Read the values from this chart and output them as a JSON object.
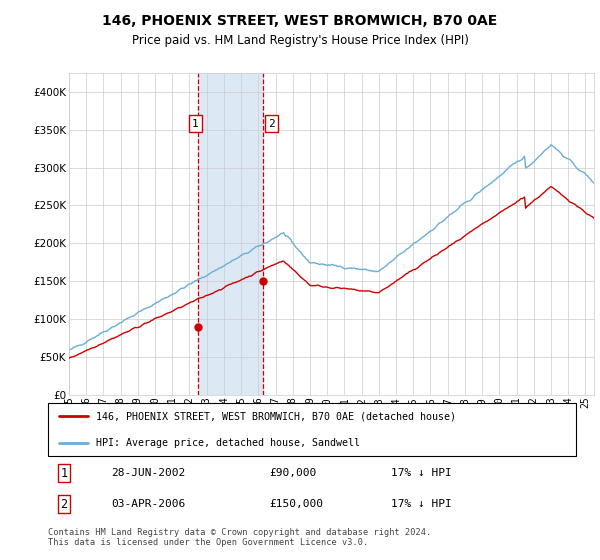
{
  "title": "146, PHOENIX STREET, WEST BROMWICH, B70 0AE",
  "subtitle": "Price paid vs. HM Land Registry's House Price Index (HPI)",
  "legend_line1": "146, PHOENIX STREET, WEST BROMWICH, B70 0AE (detached house)",
  "legend_line2": "HPI: Average price, detached house, Sandwell",
  "transaction1": {
    "label": "1",
    "date": "28-JUN-2002",
    "price": "£90,000",
    "hpi": "17% ↓ HPI"
  },
  "transaction2": {
    "label": "2",
    "date": "03-APR-2006",
    "price": "£150,000",
    "hpi": "17% ↓ HPI"
  },
  "footer": "Contains HM Land Registry data © Crown copyright and database right 2024.\nThis data is licensed under the Open Government Licence v3.0.",
  "hpi_color": "#6baed6",
  "price_color": "#cc0000",
  "marker_color": "#cc0000",
  "shaded_color": "#dce9f5",
  "dashed_color": "#cc0000",
  "ylim": [
    0,
    425000
  ],
  "yticks": [
    0,
    50000,
    100000,
    150000,
    200000,
    250000,
    300000,
    350000,
    400000
  ],
  "xlim_start": 1995.0,
  "xlim_end": 2025.5,
  "t1_year": 2002.5,
  "t2_year": 2006.25,
  "t1_price": 90000,
  "t2_price": 150000
}
